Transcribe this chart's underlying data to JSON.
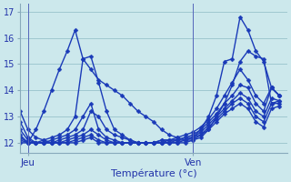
{
  "xlabel": "Température (°c)",
  "background_color": "#cce8ec",
  "grid_color": "#9fc8d0",
  "line_color": "#1a3ab8",
  "marker": "D",
  "markersize": 2.5,
  "linewidth": 1.0,
  "ylim": [
    11.6,
    17.3
  ],
  "xlim": [
    0,
    34
  ],
  "jeu_x": 1,
  "ven_x": 22,
  "yticks": [
    12,
    13,
    14,
    15,
    16,
    17
  ],
  "xtick_positions": [
    1,
    22
  ],
  "xtick_labels": [
    "Jeu",
    "Ven"
  ],
  "series": [
    [
      12.0,
      12.0,
      12.5,
      13.2,
      14.0,
      14.8,
      15.5,
      16.3,
      15.2,
      14.8,
      14.4,
      14.2,
      14.0,
      13.8,
      13.5,
      13.2,
      13.0,
      12.8,
      12.5,
      12.3,
      12.2,
      12.1,
      12.2,
      12.5,
      13.0,
      13.8,
      15.1,
      15.2,
      16.8,
      16.3,
      15.5,
      15.1,
      14.1,
      13.8
    ],
    [
      12.1,
      12.0,
      12.0,
      12.1,
      12.2,
      12.3,
      12.5,
      13.0,
      15.2,
      15.3,
      14.3,
      13.2,
      12.5,
      12.3,
      12.1,
      12.0,
      12.0,
      12.0,
      12.1,
      12.1,
      12.1,
      12.2,
      12.2,
      12.3,
      12.5,
      13.0,
      13.5,
      14.2,
      15.1,
      15.5,
      15.3,
      15.2,
      13.5,
      13.6
    ],
    [
      12.2,
      12.0,
      12.0,
      12.0,
      12.1,
      12.2,
      12.3,
      12.5,
      13.0,
      13.5,
      12.5,
      12.2,
      12.1,
      12.0,
      12.0,
      12.0,
      12.0,
      12.0,
      12.1,
      12.1,
      12.2,
      12.3,
      12.4,
      12.6,
      12.9,
      13.3,
      13.8,
      14.3,
      14.8,
      14.4,
      13.8,
      13.5,
      14.1,
      13.8
    ],
    [
      12.3,
      12.0,
      12.0,
      12.0,
      12.0,
      12.1,
      12.2,
      12.3,
      12.5,
      13.2,
      13.0,
      12.5,
      12.3,
      12.2,
      12.1,
      12.0,
      12.0,
      12.0,
      12.0,
      12.1,
      12.1,
      12.2,
      12.3,
      12.5,
      12.8,
      13.1,
      13.5,
      13.8,
      14.2,
      14.1,
      13.5,
      13.2,
      14.1,
      13.8
    ],
    [
      12.5,
      12.1,
      12.0,
      12.0,
      12.0,
      12.0,
      12.1,
      12.2,
      12.3,
      12.5,
      12.3,
      12.1,
      12.0,
      12.0,
      12.0,
      12.0,
      12.0,
      12.0,
      12.0,
      12.0,
      12.1,
      12.1,
      12.2,
      12.4,
      12.7,
      13.0,
      13.3,
      13.6,
      13.9,
      13.7,
      13.2,
      13.0,
      13.7,
      13.6
    ],
    [
      12.8,
      12.2,
      12.0,
      12.0,
      12.0,
      12.0,
      12.0,
      12.1,
      12.2,
      12.3,
      12.1,
      12.0,
      12.0,
      12.0,
      12.0,
      12.0,
      12.0,
      12.0,
      12.0,
      12.0,
      12.0,
      12.1,
      12.1,
      12.3,
      12.6,
      12.9,
      13.2,
      13.5,
      13.7,
      13.5,
      13.0,
      12.8,
      13.5,
      13.5
    ],
    [
      13.2,
      12.5,
      12.2,
      12.1,
      12.0,
      12.0,
      12.0,
      12.0,
      12.1,
      12.2,
      12.0,
      12.0,
      12.0,
      12.0,
      12.0,
      12.0,
      12.0,
      12.0,
      12.0,
      12.0,
      12.0,
      12.0,
      12.1,
      12.2,
      12.5,
      12.8,
      13.1,
      13.3,
      13.5,
      13.3,
      12.8,
      12.6,
      13.3,
      13.4
    ]
  ]
}
